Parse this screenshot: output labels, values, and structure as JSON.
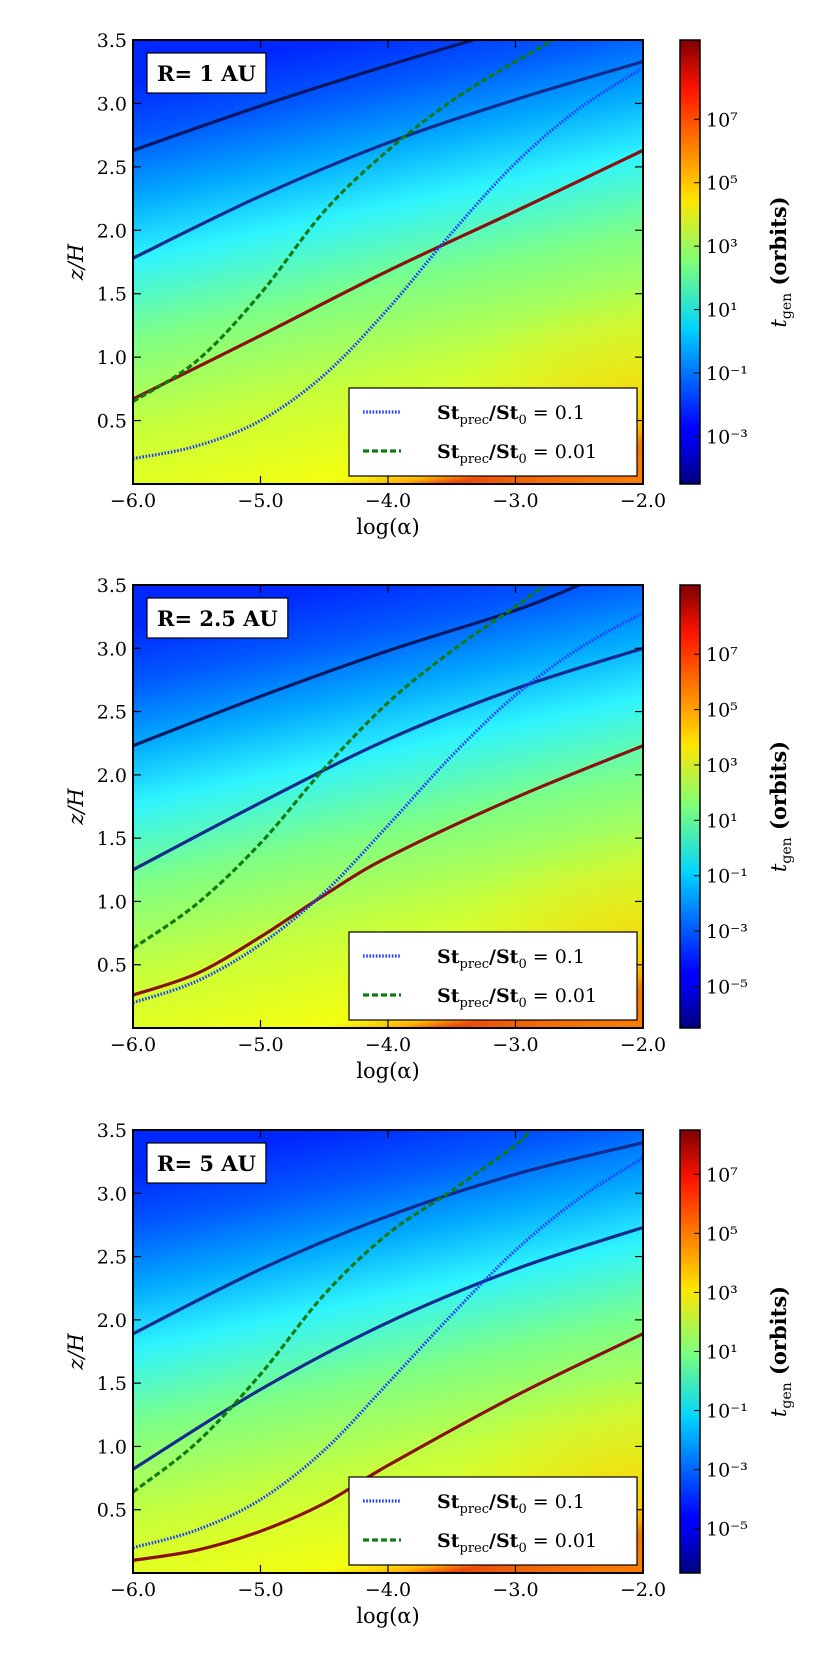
{
  "chart_data": [
    {
      "type": "heatmap",
      "title": "",
      "label": "R= 1 AU",
      "xlabel": "log(α)",
      "ylabel": "z/H",
      "xlim": [
        -6.0,
        -2.0
      ],
      "ylim": [
        0.0,
        3.5
      ],
      "xticks": [
        -6.0,
        -5.0,
        -4.0,
        -3.0,
        -2.0
      ],
      "xtick_labels": [
        "−6.0",
        "−5.0",
        "−4.0",
        "−3.0",
        "−2.0"
      ],
      "yticks": [
        0.5,
        1.0,
        1.5,
        2.0,
        2.5,
        3.0,
        3.5
      ],
      "ytick_labels": [
        "0.5",
        "1.0",
        "1.5",
        "2.0",
        "2.5",
        "3.0",
        "3.5"
      ],
      "colorbar": {
        "label": "t_gen (orbits)",
        "scale": "log",
        "range_exp": [
          -4.5,
          9.5
        ],
        "ticks_exp": [
          -3,
          -1,
          1,
          3,
          5,
          7
        ],
        "tick_labels": [
          "10⁻³",
          "10⁻¹",
          "10¹",
          "10³",
          "10⁵",
          "10⁷"
        ]
      },
      "contours": [
        {
          "name": "contour-1",
          "color": "#0b1760",
          "x": [
            -6.0,
            -5.0,
            -4.0,
            -3.33
          ],
          "y": [
            2.63,
            2.98,
            3.3,
            3.5
          ]
        },
        {
          "name": "contour-2",
          "color": "#142a8c",
          "x": [
            -6.0,
            -5.0,
            -4.0,
            -3.0,
            -2.0
          ],
          "y": [
            1.78,
            2.27,
            2.69,
            3.03,
            3.33
          ]
        },
        {
          "name": "contour-3",
          "color": "#8b1010",
          "x": [
            -6.0,
            -5.0,
            -4.0,
            -3.0,
            -2.0
          ],
          "y": [
            0.67,
            1.17,
            1.68,
            2.15,
            2.63
          ]
        }
      ],
      "series": [
        {
          "name": "St_prec/St_0 = 0.1",
          "style": "dotted",
          "color": "#1f3cff",
          "x": [
            -6.0,
            -5.5,
            -5.0,
            -4.5,
            -4.0,
            -3.5,
            -3.0,
            -2.5,
            -2.0
          ],
          "y": [
            0.2,
            0.3,
            0.5,
            0.86,
            1.38,
            1.98,
            2.53,
            2.96,
            3.28
          ]
        },
        {
          "name": "St_prec/St_0 = 0.01",
          "style": "dashed",
          "color": "#117a11",
          "x": [
            -6.0,
            -5.5,
            -5.0,
            -4.5,
            -4.0,
            -3.5,
            -3.0,
            -2.7
          ],
          "y": [
            0.65,
            0.97,
            1.5,
            2.15,
            2.63,
            3.02,
            3.33,
            3.5
          ]
        }
      ],
      "legend": {
        "position": "bottom-right",
        "entries": [
          {
            "text": "St",
            "sub": "prec",
            "mid": "/St",
            "sub2": "0",
            "value": "= 0.1"
          },
          {
            "text": "St",
            "sub": "prec",
            "mid": "/St",
            "sub2": "0",
            "value": "= 0.01"
          }
        ]
      }
    },
    {
      "type": "heatmap",
      "title": "",
      "label": "R= 2.5 AU",
      "xlabel": "log(α)",
      "ylabel": "z/H",
      "xlim": [
        -6.0,
        -2.0
      ],
      "ylim": [
        0.0,
        3.5
      ],
      "xticks": [
        -6.0,
        -5.0,
        -4.0,
        -3.0,
        -2.0
      ],
      "xtick_labels": [
        "−6.0",
        "−5.0",
        "−4.0",
        "−3.0",
        "−2.0"
      ],
      "yticks": [
        0.5,
        1.0,
        1.5,
        2.0,
        2.5,
        3.0,
        3.5
      ],
      "ytick_labels": [
        "0.5",
        "1.0",
        "1.5",
        "2.0",
        "2.5",
        "3.0",
        "3.5"
      ],
      "colorbar": {
        "label": "t_gen (orbits)",
        "scale": "log",
        "range_exp": [
          -6.5,
          9.5
        ],
        "ticks_exp": [
          -5,
          -3,
          -1,
          1,
          3,
          5,
          7
        ],
        "tick_labels": [
          "10⁻⁵",
          "10⁻³",
          "10⁻¹",
          "10¹",
          "10³",
          "10⁵",
          "10⁷"
        ]
      },
      "contours": [
        {
          "name": "contour-1",
          "color": "#0b1760",
          "x": [
            -6.0,
            -5.0,
            -4.0,
            -3.0,
            -2.5
          ],
          "y": [
            2.23,
            2.62,
            2.98,
            3.3,
            3.5
          ]
        },
        {
          "name": "contour-2",
          "color": "#142a8c",
          "x": [
            -6.0,
            -5.0,
            -4.0,
            -3.0,
            -2.0
          ],
          "y": [
            1.25,
            1.78,
            2.28,
            2.68,
            3.0
          ]
        },
        {
          "name": "contour-3",
          "color": "#8b1010",
          "x": [
            -6.0,
            -5.5,
            -5.0,
            -4.5,
            -4.0,
            -3.0,
            -2.0
          ],
          "y": [
            0.26,
            0.43,
            0.72,
            1.05,
            1.35,
            1.82,
            2.23
          ]
        }
      ],
      "series": [
        {
          "name": "St_prec/St_0 = 0.1",
          "style": "dotted",
          "color": "#1f3cff",
          "x": [
            -6.0,
            -5.5,
            -5.0,
            -4.5,
            -4.0,
            -3.5,
            -3.0,
            -2.5,
            -2.0
          ],
          "y": [
            0.2,
            0.37,
            0.66,
            1.07,
            1.6,
            2.15,
            2.63,
            3.0,
            3.28
          ]
        },
        {
          "name": "St_prec/St_0 = 0.01",
          "style": "dashed",
          "color": "#117a11",
          "x": [
            -6.0,
            -5.5,
            -5.0,
            -4.5,
            -4.0,
            -3.5,
            -3.0,
            -2.77
          ],
          "y": [
            0.63,
            0.98,
            1.46,
            2.05,
            2.57,
            2.98,
            3.33,
            3.5
          ]
        }
      ],
      "legend": {
        "position": "bottom-right",
        "entries": [
          {
            "text": "St",
            "sub": "prec",
            "mid": "/St",
            "sub2": "0",
            "value": "= 0.1"
          },
          {
            "text": "St",
            "sub": "prec",
            "mid": "/St",
            "sub2": "0",
            "value": "= 0.01"
          }
        ]
      }
    },
    {
      "type": "heatmap",
      "title": "",
      "label": "R= 5 AU",
      "xlabel": "log(α)",
      "ylabel": "z/H",
      "xlim": [
        -6.0,
        -2.0
      ],
      "ylim": [
        0.0,
        3.5
      ],
      "xticks": [
        -6.0,
        -5.0,
        -4.0,
        -3.0,
        -2.0
      ],
      "xtick_labels": [
        "−6.0",
        "−5.0",
        "−4.0",
        "−3.0",
        "−2.0"
      ],
      "yticks": [
        0.5,
        1.0,
        1.5,
        2.0,
        2.5,
        3.0,
        3.5
      ],
      "ytick_labels": [
        "0.5",
        "1.0",
        "1.5",
        "2.0",
        "2.5",
        "3.0",
        "3.5"
      ],
      "colorbar": {
        "label": "t_gen (orbits)",
        "scale": "log",
        "range_exp": [
          -6.5,
          8.5
        ],
        "ticks_exp": [
          -5,
          -3,
          -1,
          1,
          3,
          5,
          7
        ],
        "tick_labels": [
          "10⁻⁵",
          "10⁻³",
          "10⁻¹",
          "10¹",
          "10³",
          "10⁵",
          "10⁷"
        ]
      },
      "contours": [
        {
          "name": "contour-1",
          "color": "#142a8c",
          "x": [
            -6.0,
            -5.0,
            -4.0,
            -3.0,
            -2.0
          ],
          "y": [
            1.89,
            2.4,
            2.82,
            3.15,
            3.4
          ]
        },
        {
          "name": "contour-2",
          "color": "#142a8c",
          "x": [
            -6.0,
            -5.0,
            -4.0,
            -3.0,
            -2.0
          ],
          "y": [
            0.82,
            1.45,
            1.98,
            2.4,
            2.73
          ]
        },
        {
          "name": "contour-3",
          "color": "#8b1010",
          "x": [
            -6.0,
            -5.5,
            -5.0,
            -4.5,
            -4.0,
            -3.0,
            -2.0
          ],
          "y": [
            0.1,
            0.18,
            0.33,
            0.55,
            0.85,
            1.4,
            1.89
          ]
        }
      ],
      "series": [
        {
          "name": "St_prec/St_0 = 0.1",
          "style": "dotted",
          "color": "#1f3cff",
          "x": [
            -6.0,
            -5.5,
            -5.0,
            -4.5,
            -4.0,
            -3.5,
            -3.0,
            -2.5,
            -2.0
          ],
          "y": [
            0.2,
            0.34,
            0.58,
            0.97,
            1.5,
            2.04,
            2.55,
            2.96,
            3.28
          ]
        },
        {
          "name": "St_prec/St_0 = 0.01",
          "style": "dashed",
          "color": "#117a11",
          "x": [
            -6.0,
            -5.5,
            -5.0,
            -4.5,
            -4.0,
            -3.5,
            -3.0,
            -2.88
          ],
          "y": [
            0.64,
            1.03,
            1.57,
            2.2,
            2.68,
            3.02,
            3.38,
            3.5
          ]
        }
      ],
      "legend": {
        "position": "bottom-right",
        "entries": [
          {
            "text": "St",
            "sub": "prec",
            "mid": "/St",
            "sub2": "0",
            "value": "= 0.1"
          },
          {
            "text": "St",
            "sub": "prec",
            "mid": "/St",
            "sub2": "0",
            "value": "= 0.01"
          }
        ]
      }
    }
  ]
}
